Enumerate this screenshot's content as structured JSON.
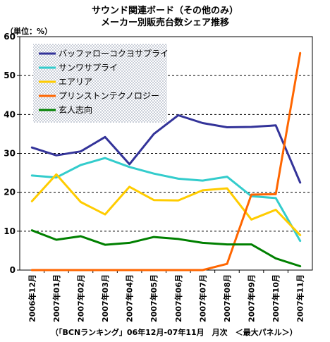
{
  "title": {
    "line1": "サウンド関連ボード（その他のみ）",
    "line2": "メーカー別販売台数シェア推移"
  },
  "footer": {
    "source": "（「BCNランキング」06年12月-07年11月　月次　＜最大パネル＞）"
  },
  "chart_data": {
    "type": "line",
    "ylabel": "（単位：%）",
    "ylim": [
      0,
      60
    ],
    "yticks": [
      0,
      10,
      20,
      30,
      40,
      50,
      60
    ],
    "grid": true,
    "legend_position": "top-left",
    "categories": [
      "2006年12月",
      "2007年01月",
      "2007年02月",
      "2007年03月",
      "2007年04月",
      "2007年05月",
      "2007年06月",
      "2007年07月",
      "2007年08月",
      "2007年09月",
      "2007年10月",
      "2007年11月"
    ],
    "series": [
      {
        "name": "バッファローコクヨサプライ",
        "color": "#333399",
        "values": [
          31.5,
          29.5,
          30.5,
          34.2,
          27.2,
          35.0,
          39.8,
          37.8,
          36.7,
          36.8,
          37.2,
          22.5
        ]
      },
      {
        "name": "サンワサプライ",
        "color": "#33cccc",
        "values": [
          24.3,
          23.8,
          27.0,
          28.8,
          26.5,
          24.8,
          23.5,
          23.0,
          24.0,
          19.0,
          18.5,
          7.5
        ]
      },
      {
        "name": "エアリア",
        "color": "#ffcc00",
        "values": [
          17.7,
          24.6,
          17.5,
          14.3,
          21.4,
          18.0,
          17.9,
          20.5,
          21.0,
          13.0,
          15.5,
          9.0
        ]
      },
      {
        "name": "プリンストンテクノロジー",
        "color": "#ff6600",
        "values": [
          0,
          0,
          0,
          0,
          0,
          0,
          0,
          0,
          1.6,
          19.4,
          19.5,
          55.8
        ]
      },
      {
        "name": "玄人志向",
        "color": "#008000",
        "values": [
          10.2,
          7.8,
          8.7,
          6.5,
          7.0,
          8.5,
          8.0,
          7.0,
          6.6,
          6.6,
          3.0,
          1.0
        ]
      }
    ]
  }
}
